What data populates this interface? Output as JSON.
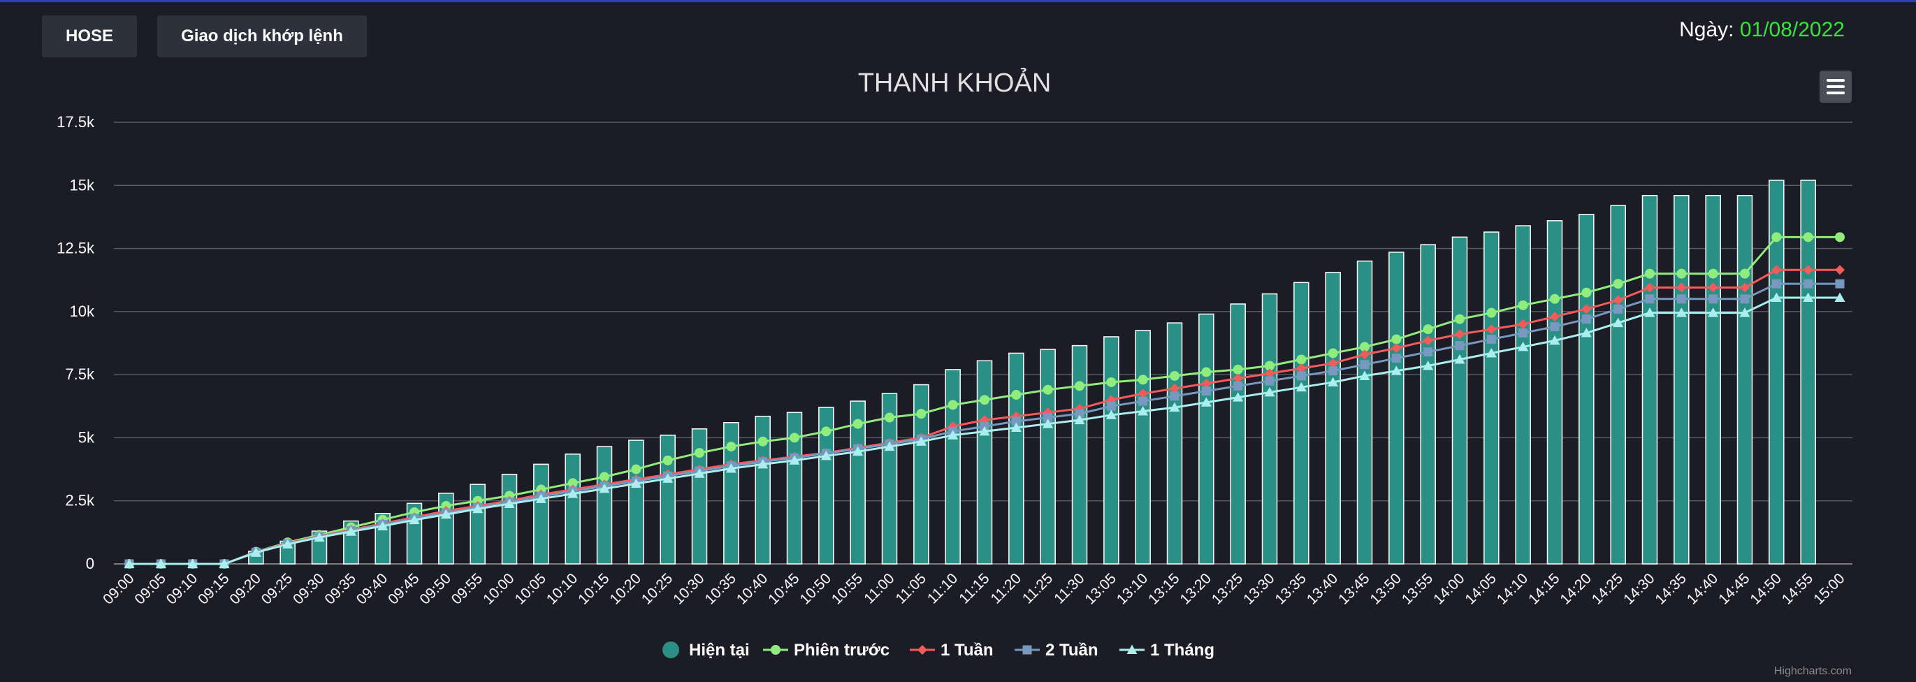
{
  "buttons": {
    "exchange": "HOSE",
    "mode": "Giao dịch khớp lệnh"
  },
  "date": {
    "label": "Ngày:",
    "value": "01/08/2022"
  },
  "credit": "Highcharts.com",
  "menu_icon": "hamburger-icon",
  "chart_data": {
    "type": "bar+line",
    "title": "THANH KHOẢN",
    "xlabel": "",
    "ylabel": "",
    "ylim": [
      0,
      17500
    ],
    "yticks": [
      0,
      2500,
      5000,
      7500,
      10000,
      12500,
      15000,
      17500
    ],
    "ytick_labels": [
      "0",
      "2.5k",
      "5k",
      "7.5k",
      "10k",
      "12.5k",
      "15k",
      "17.5k"
    ],
    "grid": true,
    "legend_position": "bottom-center",
    "categories": [
      "09:00",
      "09:05",
      "09:10",
      "09:15",
      "09:20",
      "09:25",
      "09:30",
      "09:35",
      "09:40",
      "09:45",
      "09:50",
      "09:55",
      "10:00",
      "10:05",
      "10:10",
      "10:15",
      "10:20",
      "10:25",
      "10:30",
      "10:35",
      "10:40",
      "10:45",
      "10:50",
      "10:55",
      "11:00",
      "11:05",
      "11:10",
      "11:15",
      "11:20",
      "11:25",
      "11:30",
      "13:05",
      "13:10",
      "13:15",
      "13:20",
      "13:25",
      "13:30",
      "13:35",
      "13:40",
      "13:45",
      "13:50",
      "13:55",
      "14:00",
      "14:05",
      "14:10",
      "14:15",
      "14:20",
      "14:25",
      "14:30",
      "14:35",
      "14:40",
      "14:45",
      "14:50",
      "14:55",
      "15:00"
    ],
    "series": [
      {
        "name": "Hiện tại",
        "type": "bar",
        "color": "#2a8f85",
        "marker": "circle",
        "values": [
          0,
          0,
          0,
          0,
          500,
          900,
          1300,
          1700,
          2000,
          2400,
          2800,
          3150,
          3550,
          3950,
          4350,
          4650,
          4900,
          5100,
          5350,
          5600,
          5850,
          6000,
          6200,
          6450,
          6750,
          7100,
          7700,
          8050,
          8350,
          8500,
          8650,
          9000,
          9250,
          9550,
          9900,
          10300,
          10700,
          11150,
          11550,
          12000,
          12350,
          12650,
          12950,
          13150,
          13400,
          13600,
          13850,
          14200,
          14600,
          14600,
          14600,
          14600,
          15200,
          15200,
          null
        ]
      },
      {
        "name": "Phiên trước",
        "type": "line",
        "color": "#90ed7d",
        "marker": "circle",
        "values": [
          0,
          0,
          0,
          0,
          480,
          850,
          1150,
          1450,
          1750,
          2050,
          2300,
          2500,
          2700,
          2950,
          3200,
          3450,
          3750,
          4100,
          4400,
          4650,
          4850,
          5000,
          5250,
          5550,
          5800,
          5950,
          6300,
          6500,
          6700,
          6900,
          7050,
          7200,
          7300,
          7450,
          7600,
          7700,
          7850,
          8100,
          8350,
          8600,
          8900,
          9300,
          9700,
          9950,
          10250,
          10500,
          10750,
          11100,
          11500,
          11500,
          11500,
          11500,
          12950,
          12950,
          12950
        ]
      },
      {
        "name": "1 Tuần",
        "type": "line",
        "color": "#f45b5b",
        "marker": "diamond",
        "values": [
          0,
          0,
          0,
          0,
          470,
          820,
          1100,
          1350,
          1600,
          1850,
          2100,
          2300,
          2500,
          2750,
          2950,
          3150,
          3350,
          3550,
          3750,
          3950,
          4100,
          4250,
          4400,
          4600,
          4800,
          5000,
          5450,
          5700,
          5850,
          6000,
          6150,
          6500,
          6750,
          6950,
          7150,
          7350,
          7550,
          7750,
          7950,
          8300,
          8550,
          8850,
          9100,
          9300,
          9500,
          9800,
          10100,
          10450,
          10950,
          10950,
          10950,
          10950,
          11650,
          11650,
          11650
        ]
      },
      {
        "name": "2 Tuần",
        "type": "line",
        "color": "#7798bf",
        "marker": "square",
        "values": [
          0,
          0,
          0,
          0,
          460,
          800,
          1080,
          1320,
          1560,
          1800,
          2020,
          2240,
          2450,
          2680,
          2880,
          3080,
          3280,
          3480,
          3680,
          3880,
          4050,
          4200,
          4380,
          4560,
          4750,
          4950,
          5250,
          5450,
          5650,
          5800,
          5950,
          6250,
          6450,
          6650,
          6850,
          7050,
          7250,
          7450,
          7650,
          7900,
          8150,
          8400,
          8650,
          8900,
          9150,
          9400,
          9700,
          10100,
          10500,
          10500,
          10500,
          10500,
          11100,
          11100,
          11100
        ]
      },
      {
        "name": "1 Tháng",
        "type": "line",
        "color": "#aaeeee",
        "marker": "triangle",
        "values": [
          0,
          0,
          0,
          0,
          450,
          780,
          1050,
          1280,
          1500,
          1740,
          1960,
          2180,
          2380,
          2580,
          2780,
          2980,
          3180,
          3380,
          3580,
          3780,
          3950,
          4100,
          4280,
          4450,
          4650,
          4850,
          5100,
          5250,
          5400,
          5550,
          5700,
          5900,
          6050,
          6200,
          6400,
          6600,
          6800,
          7000,
          7200,
          7450,
          7650,
          7850,
          8100,
          8350,
          8600,
          8850,
          9150,
          9550,
          9950,
          9950,
          9950,
          9950,
          10550,
          10550,
          10550
        ]
      }
    ]
  }
}
